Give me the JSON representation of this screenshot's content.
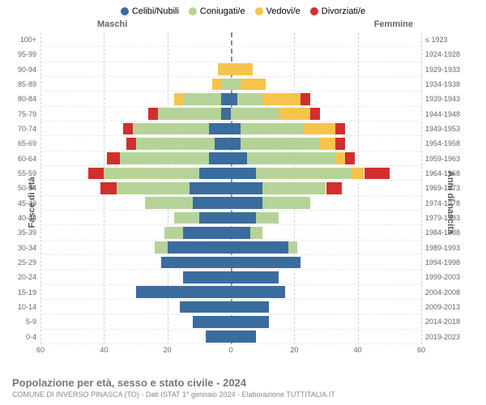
{
  "chart": {
    "type": "population-pyramid",
    "title": "Popolazione per età, sesso e stato civile - 2024",
    "subtitle": "COMUNE DI INVERSO PINASCA (TO) - Dati ISTAT 1° gennaio 2024 - Elaborazione TUTTITALIA.IT",
    "header_male": "Maschi",
    "header_female": "Femmine",
    "axis_left_label": "Fasce di età",
    "axis_right_label": "Anni di nascita",
    "legend": [
      {
        "label": "Celibi/Nubili",
        "color": "#3b6c9e"
      },
      {
        "label": "Coniugati/e",
        "color": "#b5d398"
      },
      {
        "label": "Vedovi/e",
        "color": "#f6c34d"
      },
      {
        "label": "Divorziati/e",
        "color": "#d32e2e"
      }
    ],
    "colors": {
      "single": "#3b6c9e",
      "married": "#b5d398",
      "widowed": "#f6c34d",
      "divorced": "#d32e2e",
      "gridline": "#d0d0d0",
      "centerline": "#888888",
      "background": "#ffffff"
    },
    "xlim": [
      -60,
      60
    ],
    "xticks": [
      -60,
      -40,
      -20,
      0,
      20,
      40,
      60
    ],
    "xtick_labels": [
      "60",
      "40",
      "20",
      "0",
      "20",
      "40",
      "60"
    ],
    "age_groups": [
      "100+",
      "95-99",
      "90-94",
      "85-89",
      "80-84",
      "75-79",
      "70-74",
      "65-69",
      "60-64",
      "55-59",
      "50-54",
      "45-49",
      "40-44",
      "35-39",
      "30-34",
      "25-29",
      "20-24",
      "15-19",
      "10-14",
      "5-9",
      "0-4"
    ],
    "birth_years": [
      "≤ 1923",
      "1924-1928",
      "1929-1933",
      "1934-1938",
      "1939-1943",
      "1944-1948",
      "1949-1953",
      "1954-1958",
      "1959-1963",
      "1964-1968",
      "1969-1973",
      "1974-1978",
      "1979-1983",
      "1984-1988",
      "1989-1993",
      "1994-1998",
      "1999-2003",
      "2004-2008",
      "2009-2013",
      "2014-2018",
      "2019-2023"
    ],
    "data": {
      "male": [
        {
          "single": 0,
          "married": 0,
          "widowed": 0,
          "divorced": 0
        },
        {
          "single": 0,
          "married": 0,
          "widowed": 0,
          "divorced": 0
        },
        {
          "single": 0,
          "married": 0,
          "widowed": 4,
          "divorced": 0
        },
        {
          "single": 0,
          "married": 3,
          "widowed": 3,
          "divorced": 0
        },
        {
          "single": 3,
          "married": 12,
          "widowed": 3,
          "divorced": 0
        },
        {
          "single": 3,
          "married": 20,
          "widowed": 0,
          "divorced": 3
        },
        {
          "single": 7,
          "married": 24,
          "widowed": 0,
          "divorced": 3
        },
        {
          "single": 5,
          "married": 25,
          "widowed": 0,
          "divorced": 3
        },
        {
          "single": 7,
          "married": 28,
          "widowed": 0,
          "divorced": 4
        },
        {
          "single": 10,
          "married": 30,
          "widowed": 0,
          "divorced": 5
        },
        {
          "single": 13,
          "married": 23,
          "widowed": 0,
          "divorced": 5
        },
        {
          "single": 12,
          "married": 15,
          "widowed": 0,
          "divorced": 0
        },
        {
          "single": 10,
          "married": 8,
          "widowed": 0,
          "divorced": 0
        },
        {
          "single": 15,
          "married": 6,
          "widowed": 0,
          "divorced": 0
        },
        {
          "single": 20,
          "married": 4,
          "widowed": 0,
          "divorced": 0
        },
        {
          "single": 22,
          "married": 0,
          "widowed": 0,
          "divorced": 0
        },
        {
          "single": 15,
          "married": 0,
          "widowed": 0,
          "divorced": 0
        },
        {
          "single": 30,
          "married": 0,
          "widowed": 0,
          "divorced": 0
        },
        {
          "single": 16,
          "married": 0,
          "widowed": 0,
          "divorced": 0
        },
        {
          "single": 12,
          "married": 0,
          "widowed": 0,
          "divorced": 0
        },
        {
          "single": 8,
          "married": 0,
          "widowed": 0,
          "divorced": 0
        }
      ],
      "female": [
        {
          "single": 0,
          "married": 0,
          "widowed": 0,
          "divorced": 0
        },
        {
          "single": 0,
          "married": 0,
          "widowed": 0,
          "divorced": 0
        },
        {
          "single": 0,
          "married": 0,
          "widowed": 7,
          "divorced": 0
        },
        {
          "single": 0,
          "married": 3,
          "widowed": 8,
          "divorced": 0
        },
        {
          "single": 2,
          "married": 8,
          "widowed": 12,
          "divorced": 3
        },
        {
          "single": 0,
          "married": 15,
          "widowed": 10,
          "divorced": 3
        },
        {
          "single": 3,
          "married": 20,
          "widowed": 10,
          "divorced": 3
        },
        {
          "single": 3,
          "married": 25,
          "widowed": 5,
          "divorced": 3
        },
        {
          "single": 5,
          "married": 28,
          "widowed": 3,
          "divorced": 3
        },
        {
          "single": 8,
          "married": 30,
          "widowed": 4,
          "divorced": 8
        },
        {
          "single": 10,
          "married": 20,
          "widowed": 0,
          "divorced": 5
        },
        {
          "single": 10,
          "married": 15,
          "widowed": 0,
          "divorced": 0
        },
        {
          "single": 8,
          "married": 7,
          "widowed": 0,
          "divorced": 0
        },
        {
          "single": 6,
          "married": 4,
          "widowed": 0,
          "divorced": 0
        },
        {
          "single": 18,
          "married": 3,
          "widowed": 0,
          "divorced": 0
        },
        {
          "single": 22,
          "married": 0,
          "widowed": 0,
          "divorced": 0
        },
        {
          "single": 15,
          "married": 0,
          "widowed": 0,
          "divorced": 0
        },
        {
          "single": 17,
          "married": 0,
          "widowed": 0,
          "divorced": 0
        },
        {
          "single": 12,
          "married": 0,
          "widowed": 0,
          "divorced": 0
        },
        {
          "single": 12,
          "married": 0,
          "widowed": 0,
          "divorced": 0
        },
        {
          "single": 8,
          "married": 0,
          "widowed": 0,
          "divorced": 0
        }
      ]
    }
  }
}
